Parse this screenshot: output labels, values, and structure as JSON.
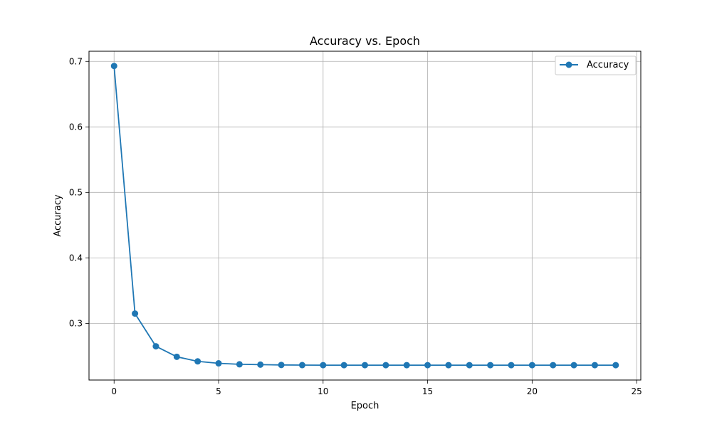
{
  "chart_data": {
    "type": "line",
    "title": "Accuracy vs. Epoch",
    "xlabel": "Epoch",
    "ylabel": "Accuracy",
    "xlim": [
      -1.2,
      25.2
    ],
    "ylim": [
      0.2135,
      0.7155
    ],
    "xticks": [
      0,
      5,
      10,
      15,
      20,
      25
    ],
    "yticks": [
      0.3,
      0.4,
      0.5,
      0.6,
      0.7
    ],
    "xtick_labels": [
      "0",
      "5",
      "10",
      "15",
      "20",
      "25"
    ],
    "ytick_labels": [
      "0.3",
      "0.4",
      "0.5",
      "0.6",
      "0.7"
    ],
    "grid": true,
    "legend": {
      "position": "top-right",
      "entries": [
        "Accuracy"
      ]
    },
    "series": [
      {
        "name": "Accuracy",
        "color": "#1f77b4",
        "marker": "circle",
        "x": [
          0,
          1,
          2,
          3,
          4,
          5,
          6,
          7,
          8,
          9,
          10,
          11,
          12,
          13,
          14,
          15,
          16,
          17,
          18,
          19,
          20,
          21,
          22,
          23,
          24
        ],
        "y": [
          0.693,
          0.315,
          0.265,
          0.249,
          0.242,
          0.239,
          0.2375,
          0.237,
          0.2365,
          0.2363,
          0.2362,
          0.2362,
          0.2362,
          0.2362,
          0.2362,
          0.2362,
          0.2362,
          0.2362,
          0.2362,
          0.2362,
          0.2362,
          0.2362,
          0.2362,
          0.2362,
          0.2362
        ]
      }
    ]
  }
}
